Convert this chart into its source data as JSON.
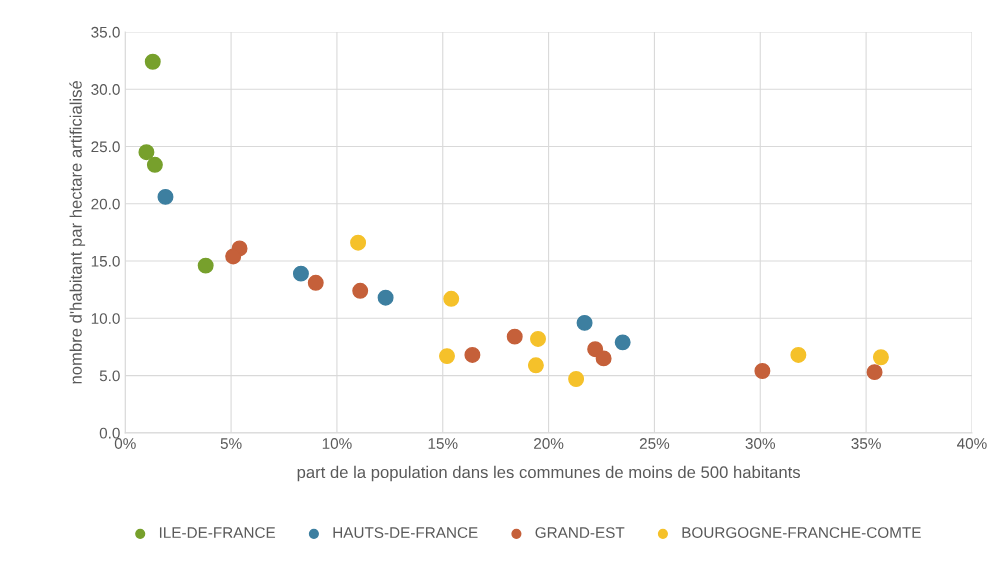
{
  "chart_data": {
    "type": "scatter",
    "xlabel": "part de la population dans les communes de moins de 500 habitants",
    "ylabel": "nombre d'habitant par hectare artificialisé",
    "xlim": [
      0,
      40
    ],
    "xticks": [
      {
        "value": 0,
        "label": "0%"
      },
      {
        "value": 5,
        "label": "5%"
      },
      {
        "value": 10,
        "label": "10%"
      },
      {
        "value": 15,
        "label": "15%"
      },
      {
        "value": 20,
        "label": "20%"
      },
      {
        "value": 25,
        "label": "25%"
      },
      {
        "value": 30,
        "label": "30%"
      },
      {
        "value": 35,
        "label": "35%"
      },
      {
        "value": 40,
        "label": "40%"
      }
    ],
    "ylim": [
      0,
      35
    ],
    "yticks": [
      {
        "value": 0,
        "label": "0.0"
      },
      {
        "value": 5,
        "label": "5.0"
      },
      {
        "value": 10,
        "label": "10.0"
      },
      {
        "value": 15,
        "label": "15.0"
      },
      {
        "value": 20,
        "label": "20.0"
      },
      {
        "value": 25,
        "label": "25.0"
      },
      {
        "value": 30,
        "label": "30.0"
      },
      {
        "value": 35,
        "label": "35.0"
      }
    ],
    "grid": true,
    "legend": "bottom",
    "marker": "circle",
    "series": [
      {
        "name": "ILE-DE-FRANCE",
        "color": "#77a02c",
        "x": [
          1.3,
          1.0,
          1.4,
          3.8
        ],
        "values": [
          32.4,
          24.5,
          23.4,
          14.6
        ]
      },
      {
        "name": "HAUTS-DE-FRANCE",
        "color": "#3d7fa0",
        "x": [
          1.9,
          8.3,
          12.3,
          21.7,
          23.5
        ],
        "values": [
          20.6,
          13.9,
          11.8,
          9.6,
          7.9
        ]
      },
      {
        "name": "GRAND-EST",
        "color": "#c5603a",
        "x": [
          5.4,
          5.1,
          9.0,
          11.1,
          18.4,
          16.4,
          22.2,
          22.6,
          30.1,
          35.4
        ],
        "values": [
          16.1,
          15.4,
          13.1,
          12.4,
          8.4,
          6.8,
          7.3,
          6.5,
          5.4,
          5.3
        ]
      },
      {
        "name": "BOURGOGNE-FRANCHE-COMTE",
        "color": "#f5c12a",
        "x": [
          11.0,
          15.4,
          15.2,
          19.5,
          19.4,
          21.3,
          31.8,
          35.7
        ],
        "values": [
          16.6,
          11.7,
          6.7,
          8.2,
          5.9,
          4.7,
          6.8,
          6.6
        ]
      }
    ]
  }
}
